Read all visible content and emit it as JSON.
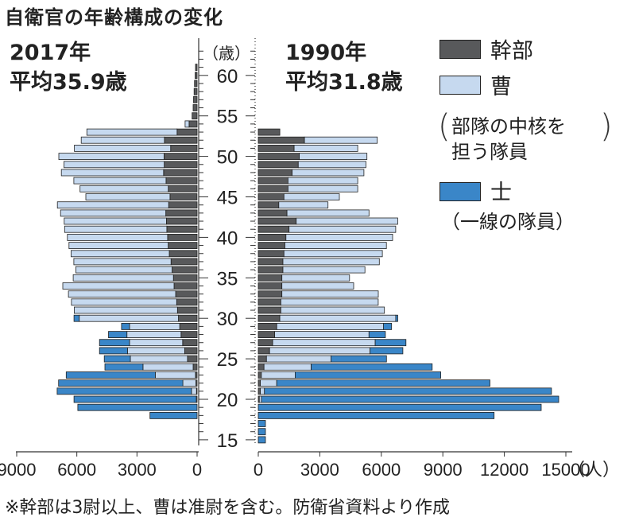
{
  "title": "自衛官の年齢構成の変化",
  "left_panel": {
    "year": "2017年",
    "average": "平均35.9歳"
  },
  "right_panel": {
    "year": "1990年",
    "average": "平均31.8歳"
  },
  "age_axis_unit": "（歳）",
  "count_axis_unit": "（人）",
  "legend": [
    {
      "name": "幹部",
      "color": "#58595b",
      "note": ""
    },
    {
      "name": "曹",
      "color": "#c6d9ef",
      "note_line1": "部隊の中核を",
      "note_line2": "担う隊員"
    },
    {
      "name": "士",
      "color": "#3a86c8",
      "note_line1": "（一線の隊員）",
      "note_line2": ""
    }
  ],
  "footnote": "※幹部は3尉以上、曹は准尉を含む。防衛省資料より作成",
  "chart_data": {
    "type": "population-pyramid",
    "title": "自衛官の年齢構成の変化",
    "age_ticks": [
      15,
      20,
      25,
      30,
      35,
      40,
      45,
      50,
      55,
      60
    ],
    "age_range": [
      15,
      62
    ],
    "left_xticks": [
      "9000",
      "6000",
      "3000",
      "0"
    ],
    "right_xticks": [
      "0",
      "3000",
      "6000",
      "9000",
      "12000",
      "15000"
    ],
    "left_xlim": [
      9000,
      0
    ],
    "right_xlim": [
      0,
      15000
    ],
    "stack_order": [
      "幹部",
      "曹",
      "士"
    ],
    "series": [
      {
        "name": "2017年",
        "ages": [
          18,
          19,
          20,
          21,
          22,
          23,
          24,
          25,
          26,
          27,
          28,
          29,
          30,
          31,
          32,
          33,
          34,
          35,
          36,
          37,
          38,
          39,
          40,
          41,
          42,
          43,
          44,
          45,
          46,
          47,
          48,
          49,
          50,
          51,
          52,
          53,
          54,
          55,
          56,
          57,
          58,
          59,
          60,
          61
        ],
        "幹部": [
          0,
          0,
          0,
          30,
          60,
          80,
          200,
          480,
          620,
          720,
          800,
          870,
          930,
          980,
          1020,
          1070,
          1150,
          1180,
          1250,
          1300,
          1390,
          1440,
          1470,
          1510,
          1530,
          1560,
          1420,
          1350,
          1440,
          1550,
          1670,
          1640,
          1650,
          1320,
          1630,
          1000,
          400,
          250,
          200,
          180,
          150,
          130,
          100,
          80
        ],
        "曹": [
          0,
          0,
          40,
          250,
          650,
          2000,
          2500,
          2850,
          2850,
          2650,
          2700,
          2500,
          4950,
          5150,
          5250,
          5350,
          5550,
          5000,
          4800,
          4850,
          4900,
          4950,
          5000,
          5100,
          5100,
          5250,
          5550,
          4200,
          4400,
          4600,
          5100,
          5000,
          5250,
          4800,
          4150,
          4500,
          200,
          0,
          0,
          0,
          0,
          0,
          0,
          0
        ],
        "士": [
          2350,
          5950,
          6100,
          6700,
          6200,
          4450,
          1900,
          1300,
          1400,
          1500,
          920,
          400,
          260,
          0,
          0,
          0,
          0,
          0,
          0,
          0,
          0,
          0,
          0,
          0,
          0,
          0,
          0,
          0,
          0,
          0,
          0,
          0,
          0,
          0,
          0,
          0,
          0,
          0,
          0,
          0,
          0,
          0,
          0,
          0
        ]
      },
      {
        "name": "1990年",
        "ages": [
          15,
          16,
          17,
          18,
          19,
          20,
          21,
          22,
          23,
          24,
          25,
          26,
          27,
          28,
          29,
          30,
          31,
          32,
          33,
          34,
          35,
          36,
          37,
          38,
          39,
          40,
          41,
          42,
          43,
          44,
          45,
          46,
          47,
          48,
          49,
          50,
          51,
          52,
          53
        ],
        "幹部": [
          0,
          0,
          0,
          0,
          0,
          50,
          100,
          100,
          150,
          280,
          400,
          550,
          700,
          800,
          900,
          1050,
          1100,
          1100,
          1150,
          1150,
          1150,
          1200,
          1200,
          1250,
          1300,
          1350,
          1500,
          1850,
          1400,
          1000,
          1250,
          1450,
          1450,
          1650,
          1950,
          2000,
          1750,
          2250,
          1050
        ],
        "曹": [
          0,
          0,
          0,
          0,
          0,
          100,
          200,
          800,
          1650,
          2300,
          3150,
          4900,
          5000,
          4600,
          5200,
          5650,
          5050,
          4750,
          4700,
          3500,
          3300,
          4000,
          4700,
          4800,
          4950,
          5200,
          5200,
          4950,
          4000,
          2400,
          2700,
          3400,
          3400,
          3500,
          3300,
          3300,
          3100,
          3550,
          0
        ],
        "士": [
          350,
          350,
          350,
          11500,
          13800,
          14500,
          14000,
          10400,
          7100,
          5900,
          2700,
          1600,
          1500,
          800,
          400,
          100,
          0,
          0,
          0,
          0,
          0,
          0,
          0,
          0,
          0,
          0,
          0,
          0,
          0,
          0,
          0,
          0,
          0,
          0,
          0,
          0,
          0,
          0,
          0
        ]
      }
    ]
  }
}
